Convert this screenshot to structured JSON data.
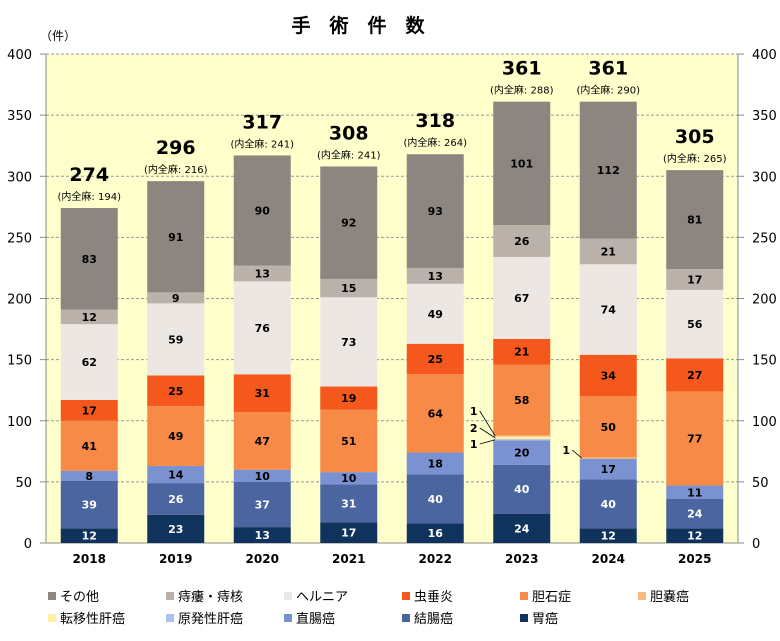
{
  "chart_data": {
    "type": "bar",
    "stacked": true,
    "title": "手　術　件　数",
    "ylabel": "（件）",
    "ylim": [
      0,
      400
    ],
    "yticks": [
      0,
      50,
      100,
      150,
      200,
      250,
      300,
      350,
      400
    ],
    "grid": true,
    "legend_position": "bottom",
    "plot_background": "#ffffcc",
    "categories": [
      "2018",
      "2019",
      "2020",
      "2021",
      "2022",
      "2023",
      "2024",
      "2025"
    ],
    "totals": [
      274,
      296,
      317,
      308,
      318,
      361,
      361,
      305
    ],
    "general_anesthesia": [
      "(内全麻: 194)",
      "(内全麻: 216)",
      "(内全麻: 241)",
      "(内全麻: 241)",
      "(内全麻: 264)",
      "(内全麻: 288)",
      "(内全麻: 290)",
      "(内全麻: 265)"
    ],
    "series": [
      {
        "name": "胃癌",
        "color": "#10335e",
        "label_color": "#ffffff",
        "values": [
          12,
          23,
          13,
          17,
          16,
          24,
          12,
          12
        ]
      },
      {
        "name": "結腸癌",
        "color": "#4a659f",
        "label_color": "#ffffff",
        "values": [
          39,
          26,
          37,
          31,
          40,
          40,
          40,
          24
        ]
      },
      {
        "name": "直腸癌",
        "color": "#7b92d2",
        "label_color": "#000000",
        "values": [
          8,
          14,
          10,
          10,
          18,
          20,
          17,
          11
        ]
      },
      {
        "name": "原発性肝癌",
        "color": "#a9c0f2",
        "label_color": "#000000",
        "values": [
          0,
          0,
          0,
          0,
          0,
          1,
          0,
          0
        ]
      },
      {
        "name": "転移性肝癌",
        "color": "#fff0a0",
        "label_color": "#000000",
        "values": [
          0,
          0,
          0,
          0,
          0,
          2,
          0,
          0
        ]
      },
      {
        "name": "胆嚢癌",
        "color": "#f7bb80",
        "label_color": "#000000",
        "values": [
          0,
          0,
          0,
          0,
          0,
          1,
          1,
          0
        ]
      },
      {
        "name": "胆石症",
        "color": "#f88a48",
        "label_color": "#000000",
        "values": [
          41,
          49,
          47,
          51,
          64,
          58,
          50,
          77
        ]
      },
      {
        "name": "虫垂炎",
        "color": "#f4581c",
        "label_color": "#000000",
        "values": [
          17,
          25,
          31,
          19,
          25,
          21,
          34,
          27
        ]
      },
      {
        "name": "ヘルニア",
        "color": "#ede7e3",
        "label_color": "#000000",
        "values": [
          62,
          59,
          76,
          73,
          49,
          67,
          74,
          56
        ]
      },
      {
        "name": "痔瘻・痔核",
        "color": "#b9b1aa",
        "label_color": "#000000",
        "values": [
          12,
          9,
          13,
          15,
          13,
          26,
          21,
          17
        ]
      },
      {
        "name": "その他",
        "color": "#8c8580",
        "label_color": "#000000",
        "values": [
          83,
          91,
          90,
          92,
          93,
          101,
          112,
          81
        ]
      }
    ],
    "legend_order": [
      "その他",
      "痔瘻・痔核",
      "ヘルニア",
      "虫垂炎",
      "胆石症",
      "胆嚢癌",
      "転移性肝癌",
      "原発性肝癌",
      "直腸癌",
      "結腸癌",
      "胃癌"
    ]
  }
}
